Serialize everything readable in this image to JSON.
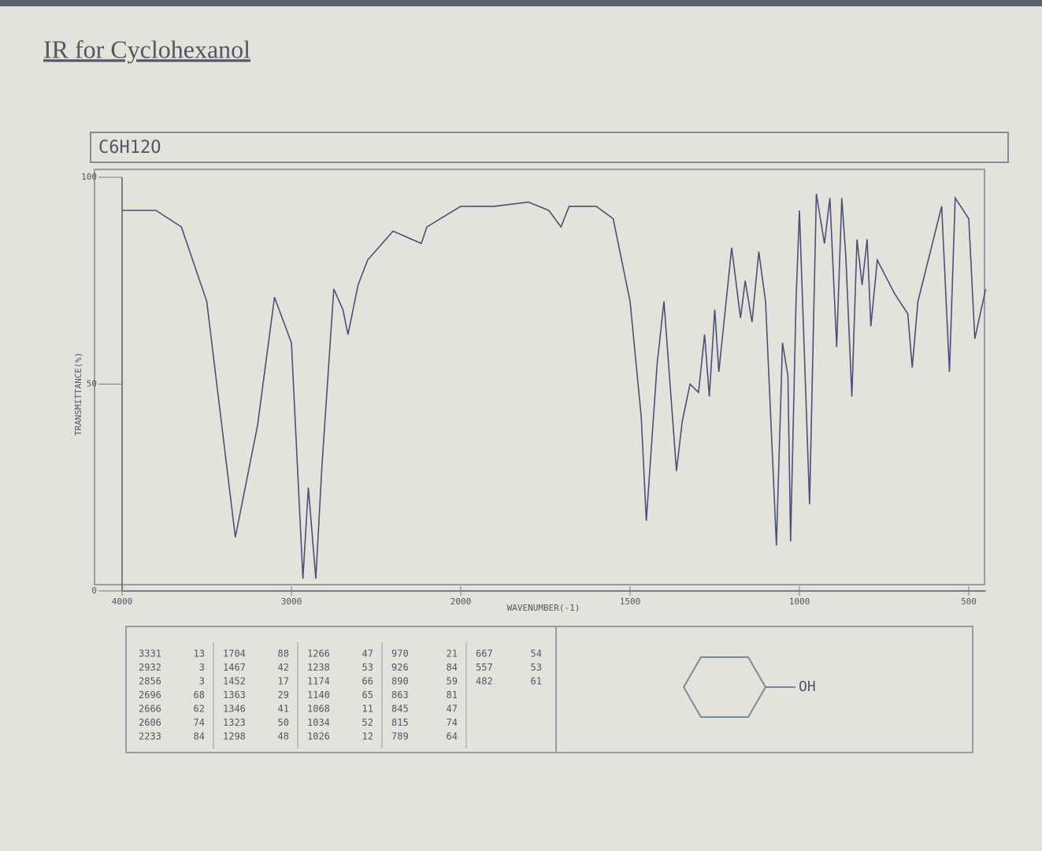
{
  "page_title": "IR for Cyclohexanol",
  "chart_data": {
    "type": "line",
    "formula": "C6H12O",
    "xlabel": "WAVENUMBER(-1)",
    "ylabel": "TRANSMITTANCE(%)",
    "xlim": [
      4000,
      450
    ],
    "ylim": [
      0,
      100
    ],
    "xticks": [
      4000,
      3000,
      2000,
      1500,
      1000,
      500
    ],
    "yticks": [
      0,
      50,
      100
    ],
    "series": [
      {
        "color": "#4a5078",
        "x": [
          4000,
          3800,
          3650,
          3500,
          3331,
          3200,
          3100,
          3000,
          2932,
          2900,
          2856,
          2820,
          2750,
          2696,
          2666,
          2606,
          2550,
          2400,
          2233,
          2200,
          2000,
          1900,
          1800,
          1740,
          1704,
          1680,
          1600,
          1550,
          1500,
          1467,
          1452,
          1420,
          1400,
          1363,
          1346,
          1323,
          1298,
          1280,
          1266,
          1250,
          1238,
          1200,
          1174,
          1160,
          1140,
          1120,
          1100,
          1068,
          1050,
          1034,
          1026,
          1010,
          1000,
          970,
          950,
          926,
          910,
          890,
          875,
          863,
          845,
          830,
          815,
          800,
          789,
          770,
          720,
          680,
          667,
          650,
          580,
          557,
          540,
          500,
          482,
          450
        ],
        "values": [
          92,
          92,
          88,
          70,
          13,
          40,
          71,
          60,
          3,
          25,
          3,
          30,
          73,
          68,
          62,
          74,
          80,
          87,
          84,
          88,
          93,
          93,
          94,
          92,
          88,
          93,
          93,
          90,
          70,
          42,
          17,
          55,
          70,
          29,
          41,
          50,
          48,
          62,
          47,
          68,
          53,
          83,
          66,
          75,
          65,
          82,
          70,
          11,
          60,
          52,
          12,
          70,
          92,
          21,
          96,
          84,
          95,
          59,
          95,
          81,
          47,
          85,
          74,
          85,
          64,
          80,
          72,
          67,
          54,
          70,
          93,
          53,
          95,
          90,
          61,
          73
        ]
      }
    ]
  },
  "peak_table": [
    [
      [
        3331,
        13
      ],
      [
        2932,
        3
      ],
      [
        2856,
        3
      ],
      [
        2696,
        68
      ],
      [
        2666,
        62
      ],
      [
        2606,
        74
      ],
      [
        2233,
        84
      ]
    ],
    [
      [
        1704,
        88
      ],
      [
        1467,
        42
      ],
      [
        1452,
        17
      ],
      [
        1363,
        29
      ],
      [
        1346,
        41
      ],
      [
        1323,
        50
      ],
      [
        1298,
        48
      ]
    ],
    [
      [
        1266,
        47
      ],
      [
        1238,
        53
      ],
      [
        1174,
        66
      ],
      [
        1140,
        65
      ],
      [
        1068,
        11
      ],
      [
        1034,
        52
      ],
      [
        1026,
        12
      ]
    ],
    [
      [
        970,
        21
      ],
      [
        926,
        84
      ],
      [
        890,
        59
      ],
      [
        863,
        81
      ],
      [
        845,
        47
      ],
      [
        815,
        74
      ],
      [
        789,
        64
      ]
    ],
    [
      [
        667,
        54
      ],
      [
        557,
        53
      ],
      [
        482,
        61
      ]
    ]
  ],
  "structure_label": "OH"
}
